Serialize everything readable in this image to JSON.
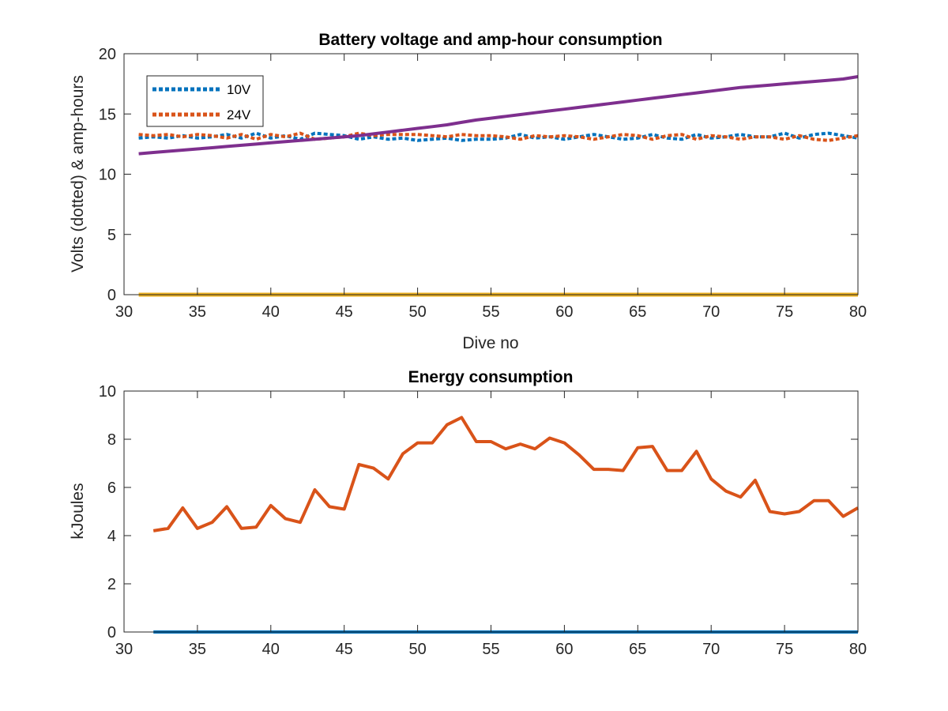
{
  "chart_data": [
    {
      "type": "line",
      "title": "Battery voltage and amp-hour consumption",
      "xlabel": "Dive no",
      "ylabel": "Volts (dotted) & amp-hours",
      "xlim": [
        30,
        80
      ],
      "ylim": [
        0,
        20
      ],
      "xticks": [
        "30",
        "35",
        "40",
        "45",
        "50",
        "55",
        "60",
        "65",
        "70",
        "75",
        "80"
      ],
      "yticks": [
        "0",
        "5",
        "10",
        "15",
        "20"
      ],
      "legend_position": "top-left",
      "grid": false,
      "x": [
        31,
        32,
        33,
        34,
        35,
        36,
        37,
        38,
        39,
        40,
        41,
        42,
        43,
        44,
        45,
        46,
        47,
        48,
        49,
        50,
        51,
        52,
        53,
        54,
        55,
        56,
        57,
        58,
        59,
        60,
        61,
        62,
        63,
        64,
        65,
        66,
        67,
        68,
        69,
        70,
        71,
        72,
        73,
        74,
        75,
        76,
        77,
        78,
        79,
        80
      ],
      "series": [
        {
          "name": "10V",
          "style": "dotted",
          "color": "#0072BD",
          "values": [
            13.0,
            13.1,
            13.0,
            13.2,
            13.0,
            13.1,
            13.3,
            13.0,
            13.4,
            13.0,
            13.2,
            12.9,
            13.4,
            13.3,
            13.2,
            12.9,
            13.1,
            12.9,
            13.0,
            12.8,
            12.9,
            13.0,
            12.8,
            12.9,
            12.9,
            13.0,
            13.3,
            13.0,
            13.1,
            12.9,
            13.1,
            13.3,
            13.1,
            12.9,
            13.0,
            13.3,
            13.0,
            12.9,
            13.3,
            13.0,
            13.1,
            13.3,
            13.1,
            13.1,
            13.4,
            13.0,
            13.3,
            13.4,
            13.2,
            13.0
          ]
        },
        {
          "name": "24V",
          "style": "dotted",
          "color": "#D95319",
          "values": [
            13.3,
            13.2,
            13.3,
            13.1,
            13.3,
            13.2,
            13.0,
            13.3,
            12.9,
            13.3,
            13.1,
            13.4,
            12.9,
            13.0,
            13.1,
            13.4,
            13.2,
            13.3,
            13.3,
            13.3,
            13.2,
            13.1,
            13.3,
            13.2,
            13.2,
            13.1,
            12.9,
            13.2,
            13.1,
            13.2,
            13.1,
            12.9,
            13.1,
            13.3,
            13.2,
            12.9,
            13.2,
            13.3,
            12.9,
            13.2,
            13.1,
            12.9,
            13.1,
            13.1,
            12.9,
            13.2,
            12.9,
            12.8,
            13.0,
            13.2
          ]
        },
        {
          "style": "solid",
          "color": "#7E2F8E",
          "values": [
            11.7,
            11.8,
            11.9,
            12.0,
            12.1,
            12.2,
            12.3,
            12.4,
            12.5,
            12.6,
            12.7,
            12.8,
            12.9,
            13.0,
            13.1,
            13.2,
            13.35,
            13.5,
            13.65,
            13.8,
            13.95,
            14.1,
            14.3,
            14.5,
            14.65,
            14.8,
            14.95,
            15.1,
            15.25,
            15.4,
            15.55,
            15.7,
            15.85,
            16.0,
            16.15,
            16.3,
            16.45,
            16.6,
            16.75,
            16.9,
            17.05,
            17.2,
            17.3,
            17.4,
            17.5,
            17.6,
            17.7,
            17.8,
            17.9,
            18.1
          ]
        },
        {
          "style": "solid",
          "color": "#EDB120",
          "values": [
            0,
            0,
            0,
            0,
            0,
            0,
            0,
            0,
            0,
            0,
            0,
            0,
            0,
            0,
            0,
            0,
            0,
            0,
            0,
            0,
            0,
            0,
            0,
            0,
            0,
            0,
            0,
            0,
            0,
            0,
            0,
            0,
            0,
            0,
            0,
            0,
            0,
            0,
            0,
            0,
            0,
            0,
            0,
            0,
            0,
            0,
            0,
            0,
            0,
            0
          ]
        }
      ]
    },
    {
      "type": "line",
      "title": "Energy consumption",
      "xlabel": "",
      "ylabel": "kJoules",
      "xlim": [
        30,
        80
      ],
      "ylim": [
        0,
        10
      ],
      "xticks": [
        "30",
        "35",
        "40",
        "45",
        "50",
        "55",
        "60",
        "65",
        "70",
        "75",
        "80"
      ],
      "yticks": [
        "0",
        "2",
        "4",
        "6",
        "8",
        "10"
      ],
      "grid": false,
      "x": [
        32,
        33,
        34,
        35,
        36,
        37,
        38,
        39,
        40,
        41,
        42,
        43,
        44,
        45,
        46,
        47,
        48,
        49,
        50,
        51,
        52,
        53,
        54,
        55,
        56,
        57,
        58,
        59,
        60,
        61,
        62,
        63,
        64,
        65,
        66,
        67,
        68,
        69,
        70,
        71,
        72,
        73,
        74,
        75,
        76,
        77,
        78,
        79,
        80
      ],
      "series": [
        {
          "style": "solid",
          "color": "#D95319",
          "values": [
            4.2,
            4.3,
            5.15,
            4.3,
            4.55,
            5.2,
            4.3,
            4.35,
            5.25,
            4.7,
            4.55,
            5.9,
            5.2,
            5.1,
            6.95,
            6.8,
            6.35,
            7.4,
            7.85,
            7.85,
            8.6,
            8.9,
            7.9,
            7.9,
            7.6,
            7.8,
            7.6,
            8.05,
            7.85,
            7.35,
            6.75,
            6.75,
            6.7,
            7.65,
            7.7,
            6.7,
            6.7,
            7.5,
            6.35,
            5.85,
            5.6,
            6.3,
            5.0,
            4.9,
            5.0,
            5.45,
            5.45,
            4.8,
            5.15
          ]
        },
        {
          "style": "solid",
          "color": "#0072BD",
          "values": [
            0,
            0,
            0,
            0,
            0,
            0,
            0,
            0,
            0,
            0,
            0,
            0,
            0,
            0,
            0,
            0,
            0,
            0,
            0,
            0,
            0,
            0,
            0,
            0,
            0,
            0,
            0,
            0,
            0,
            0,
            0,
            0,
            0,
            0,
            0,
            0,
            0,
            0,
            0,
            0,
            0,
            0,
            0,
            0,
            0,
            0,
            0,
            0,
            0
          ]
        }
      ]
    }
  ]
}
